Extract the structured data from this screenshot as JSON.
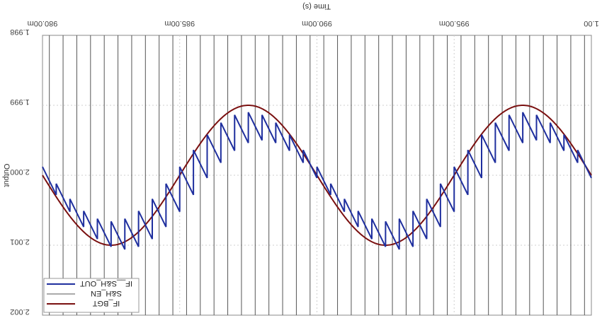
{
  "chart_data": {
    "type": "line",
    "rendering": "image is mirrored horizontally and vertically (rotated 180 degrees)",
    "title": "",
    "xlabel": "Time (s)",
    "ylabel": "Output",
    "x_tick_labels": [
      "980.00m",
      "985.00m",
      "990.00m",
      "995.00m",
      "1.00"
    ],
    "y_tick_labels": [
      "1.998",
      "1.999",
      "2.000",
      "2.001",
      "2.002"
    ],
    "xlim": [
      0.98,
      1.0
    ],
    "ylim": [
      1.998,
      2.002
    ],
    "grid": true,
    "legend_position": "bottom-left",
    "series": [
      {
        "name": "IF__S&H_OUT",
        "color": "#1f2f9e",
        "kind": "sample-and-hold ramp",
        "amplitude": 0.00078,
        "offset": 2.0,
        "frequency_hz": 100,
        "sample_period_s": 0.0005,
        "x_range": [
          0.98,
          1.0
        ]
      },
      {
        "name": "S&H_EN",
        "color": "#555555",
        "kind": "pulse train",
        "period_s": 0.0005,
        "x_range": [
          0.98,
          1.0
        ]
      },
      {
        "name": "IF_BGT",
        "color": "#7a1010",
        "kind": "sine",
        "amplitude": 0.001,
        "offset": 2.0,
        "frequency_hz": 100,
        "x_range": [
          0.98,
          1.0
        ]
      }
    ]
  }
}
